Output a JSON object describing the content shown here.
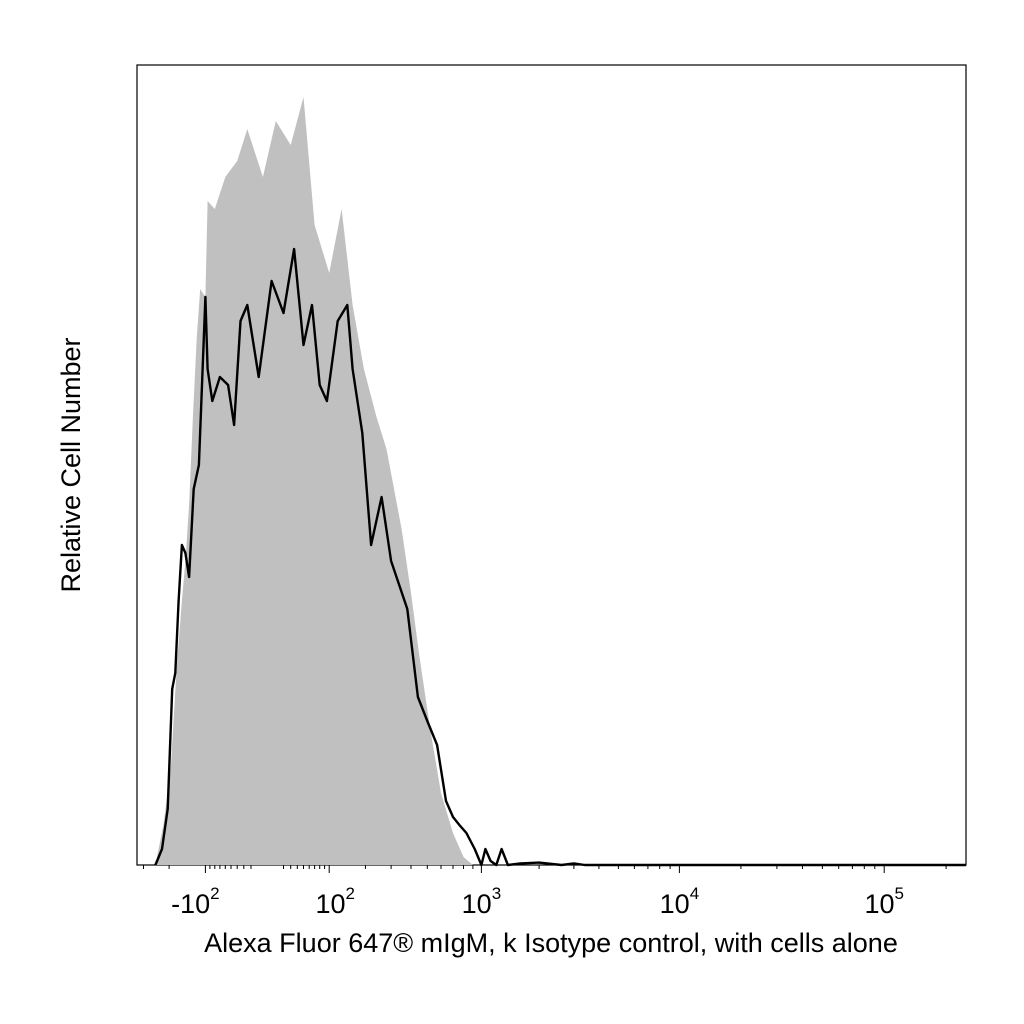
{
  "chart_data": {
    "type": "area",
    "title": "",
    "xlabel": "Alexa Fluor 647® mIgM, k Isotype control, with cells alone",
    "ylabel": "Relative Cell Number",
    "x_scale": "biexponential",
    "xlim": [
      -330,
      250000
    ],
    "ylim": [
      0,
      1
    ],
    "grid": false,
    "legend": "none",
    "x_ticks": [
      {
        "base": "-10",
        "exp": "2",
        "value": -100
      },
      {
        "base": "10",
        "exp": "2",
        "value": 100
      },
      {
        "base": "10",
        "exp": "3",
        "value": 1000
      },
      {
        "base": "10",
        "exp": "4",
        "value": 10000
      },
      {
        "base": "10",
        "exp": "5",
        "value": 100000
      }
    ],
    "series": [
      {
        "style": "filled",
        "color": "#c0c0c0",
        "points": [
          [
            -250,
            0.0
          ],
          [
            -220,
            0.05
          ],
          [
            -195,
            0.12
          ],
          [
            -175,
            0.25
          ],
          [
            -160,
            0.33
          ],
          [
            -150,
            0.38
          ],
          [
            -140,
            0.45
          ],
          [
            -130,
            0.56
          ],
          [
            -120,
            0.66
          ],
          [
            -112,
            0.72
          ],
          [
            -100,
            0.71
          ],
          [
            -95,
            0.83
          ],
          [
            -80,
            0.82
          ],
          [
            -60,
            0.86
          ],
          [
            -40,
            0.88
          ],
          [
            -25,
            0.92
          ],
          [
            -5,
            0.86
          ],
          [
            10,
            0.93
          ],
          [
            30,
            0.9
          ],
          [
            50,
            0.96
          ],
          [
            70,
            0.8
          ],
          [
            100,
            0.74
          ],
          [
            130,
            0.82
          ],
          [
            160,
            0.7
          ],
          [
            195,
            0.62
          ],
          [
            240,
            0.56
          ],
          [
            280,
            0.52
          ],
          [
            350,
            0.42
          ],
          [
            400,
            0.34
          ],
          [
            450,
            0.26
          ],
          [
            520,
            0.17
          ],
          [
            600,
            0.09
          ],
          [
            700,
            0.04
          ],
          [
            800,
            0.01
          ],
          [
            900,
            0.0
          ]
        ]
      },
      {
        "style": "line",
        "color": "#000000",
        "points": [
          [
            -250,
            0.0
          ],
          [
            -225,
            0.02
          ],
          [
            -205,
            0.07
          ],
          [
            -190,
            0.22
          ],
          [
            -180,
            0.24
          ],
          [
            -170,
            0.33
          ],
          [
            -160,
            0.4
          ],
          [
            -150,
            0.39
          ],
          [
            -140,
            0.36
          ],
          [
            -128,
            0.47
          ],
          [
            -115,
            0.5
          ],
          [
            -100,
            0.71
          ],
          [
            -95,
            0.62
          ],
          [
            -85,
            0.58
          ],
          [
            -70,
            0.61
          ],
          [
            -55,
            0.6
          ],
          [
            -45,
            0.55
          ],
          [
            -35,
            0.68
          ],
          [
            -25,
            0.7
          ],
          [
            -10,
            0.61
          ],
          [
            5,
            0.73
          ],
          [
            20,
            0.69
          ],
          [
            35,
            0.77
          ],
          [
            50,
            0.65
          ],
          [
            65,
            0.7
          ],
          [
            80,
            0.6
          ],
          [
            95,
            0.58
          ],
          [
            120,
            0.68
          ],
          [
            145,
            0.7
          ],
          [
            160,
            0.62
          ],
          [
            190,
            0.54
          ],
          [
            220,
            0.4
          ],
          [
            260,
            0.46
          ],
          [
            300,
            0.38
          ],
          [
            380,
            0.32
          ],
          [
            440,
            0.21
          ],
          [
            500,
            0.18
          ],
          [
            570,
            0.15
          ],
          [
            640,
            0.08
          ],
          [
            700,
            0.06
          ],
          [
            760,
            0.05
          ],
          [
            830,
            0.04
          ],
          [
            920,
            0.02
          ],
          [
            1000,
            0.0
          ],
          [
            1050,
            0.02
          ],
          [
            1120,
            0.005
          ],
          [
            1200,
            0.0
          ],
          [
            1280,
            0.02
          ],
          [
            1380,
            0.0
          ],
          [
            1600,
            0.002
          ],
          [
            2000,
            0.003
          ],
          [
            2600,
            0.0
          ],
          [
            3000,
            0.002
          ],
          [
            3400,
            0.0
          ],
          [
            250000,
            0.0
          ]
        ]
      }
    ]
  }
}
